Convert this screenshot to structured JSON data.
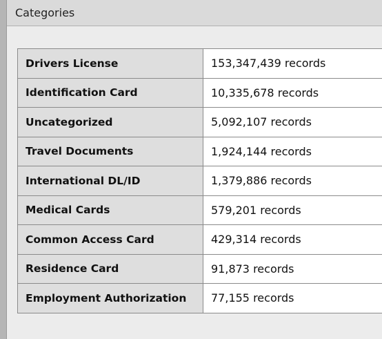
{
  "header": {
    "title": "Categories"
  },
  "table": {
    "rows": [
      [
        "Drivers License",
        "153,347,439 records"
      ],
      [
        "Identification Card",
        "10,335,678 records"
      ],
      [
        "Uncategorized",
        "5,092,107 records"
      ],
      [
        "Travel Documents",
        "1,924,144 records"
      ],
      [
        "International DL/ID",
        "1,379,886 records"
      ],
      [
        "Medical Cards",
        "579,201 records"
      ],
      [
        "Common Access Card",
        "429,314 records"
      ],
      [
        "Residence Card",
        "91,873 records"
      ],
      [
        "Employment Authorization",
        "77,155 records"
      ]
    ]
  }
}
